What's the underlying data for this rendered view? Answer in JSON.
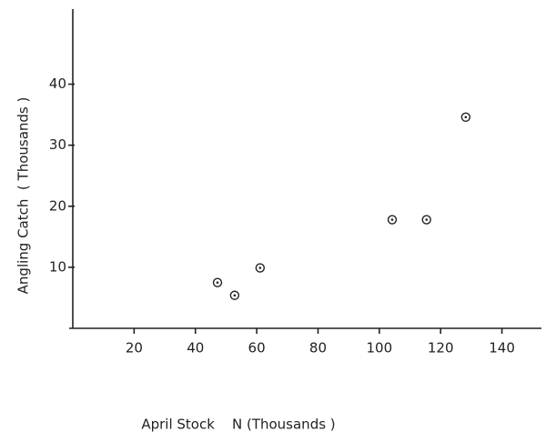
{
  "chart_data": {
    "type": "scatter",
    "x_label": "April Stock    N (Thousands )",
    "y_label": "Angling Catch  ( Thousands )",
    "series": [
      {
        "x": [
          47.2,
          52.8,
          61.1,
          104.2,
          115.4,
          128.2
        ],
        "values": [
          7.5,
          5.4,
          9.9,
          17.8,
          17.8,
          34.6
        ],
        "color": "#222222"
      }
    ],
    "xlim": [
      0,
      152
    ],
    "ylim": [
      0,
      52
    ],
    "xticks": [
      20,
      40,
      60,
      80,
      100,
      120,
      140
    ],
    "yticks": [
      10,
      20,
      30,
      40
    ]
  }
}
